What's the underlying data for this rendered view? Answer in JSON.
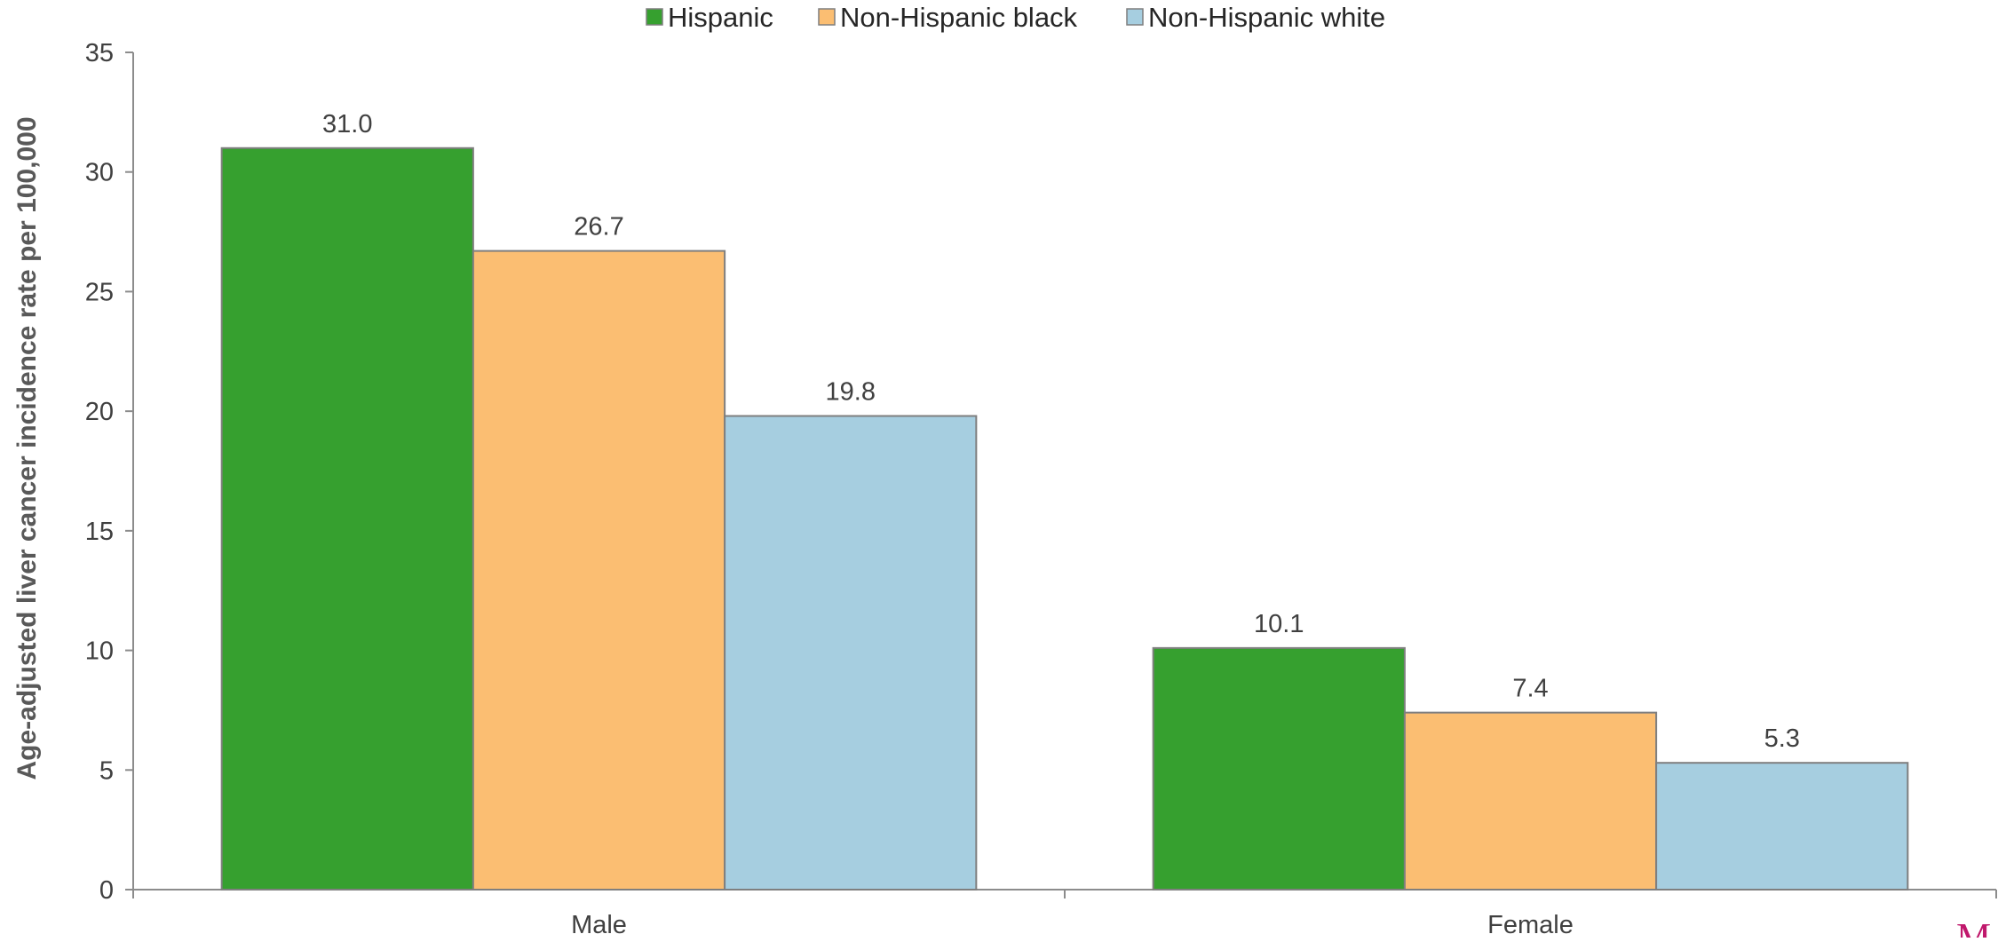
{
  "chart_data": {
    "type": "bar",
    "title": "",
    "xlabel": "",
    "ylabel": "Age-adjusted liver cancer incidence rate per 100,000",
    "categories": [
      "Male",
      "Female"
    ],
    "series": [
      {
        "name": "Hispanic",
        "values": [
          31.0,
          10.1
        ],
        "color": "#36a02f"
      },
      {
        "name": "Non-Hispanic black",
        "values": [
          26.7,
          7.4
        ],
        "color": "#fbbe72"
      },
      {
        "name": "Non-Hispanic white",
        "values": [
          19.8,
          5.3
        ],
        "color": "#a6cee0"
      }
    ],
    "data_labels": [
      [
        "31.0",
        "10.1"
      ],
      [
        "26.7",
        "7.4"
      ],
      [
        "19.8",
        "5.3"
      ]
    ],
    "ylim": [
      0,
      35
    ],
    "yticks": [
      0,
      5,
      10,
      15,
      20,
      25,
      30,
      35
    ],
    "grid": false,
    "legend_position": "top-center"
  },
  "corner_mark": "M"
}
